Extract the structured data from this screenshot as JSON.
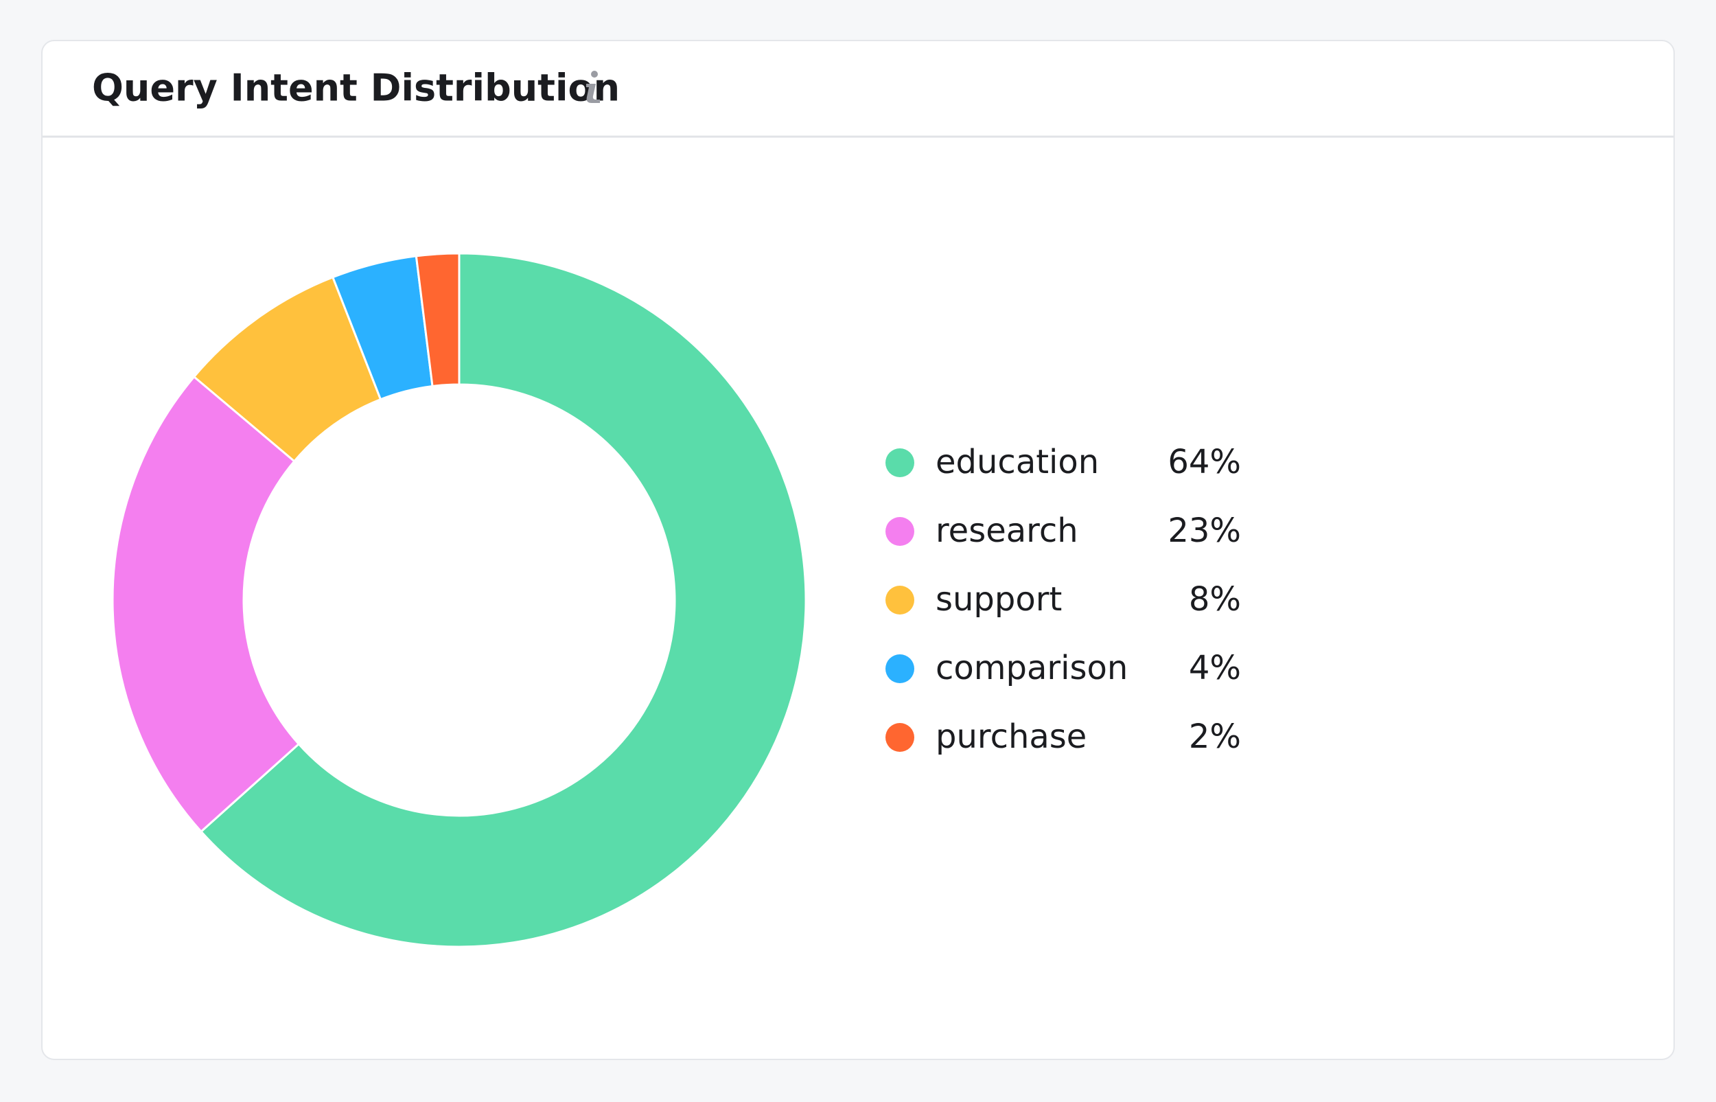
{
  "chart_data": {
    "type": "donut",
    "title": "Query Intent Distribution",
    "categories": [
      "education",
      "research",
      "support",
      "comparison",
      "purchase"
    ],
    "values": [
      64,
      23,
      8,
      4,
      2
    ],
    "value_labels": [
      "64%",
      "23%",
      "8%",
      "4%",
      "2%"
    ],
    "colors": [
      "#5adcaa",
      "#f47fef",
      "#ffc13d",
      "#2bb1ff",
      "#ff6630"
    ],
    "legend": "right"
  }
}
